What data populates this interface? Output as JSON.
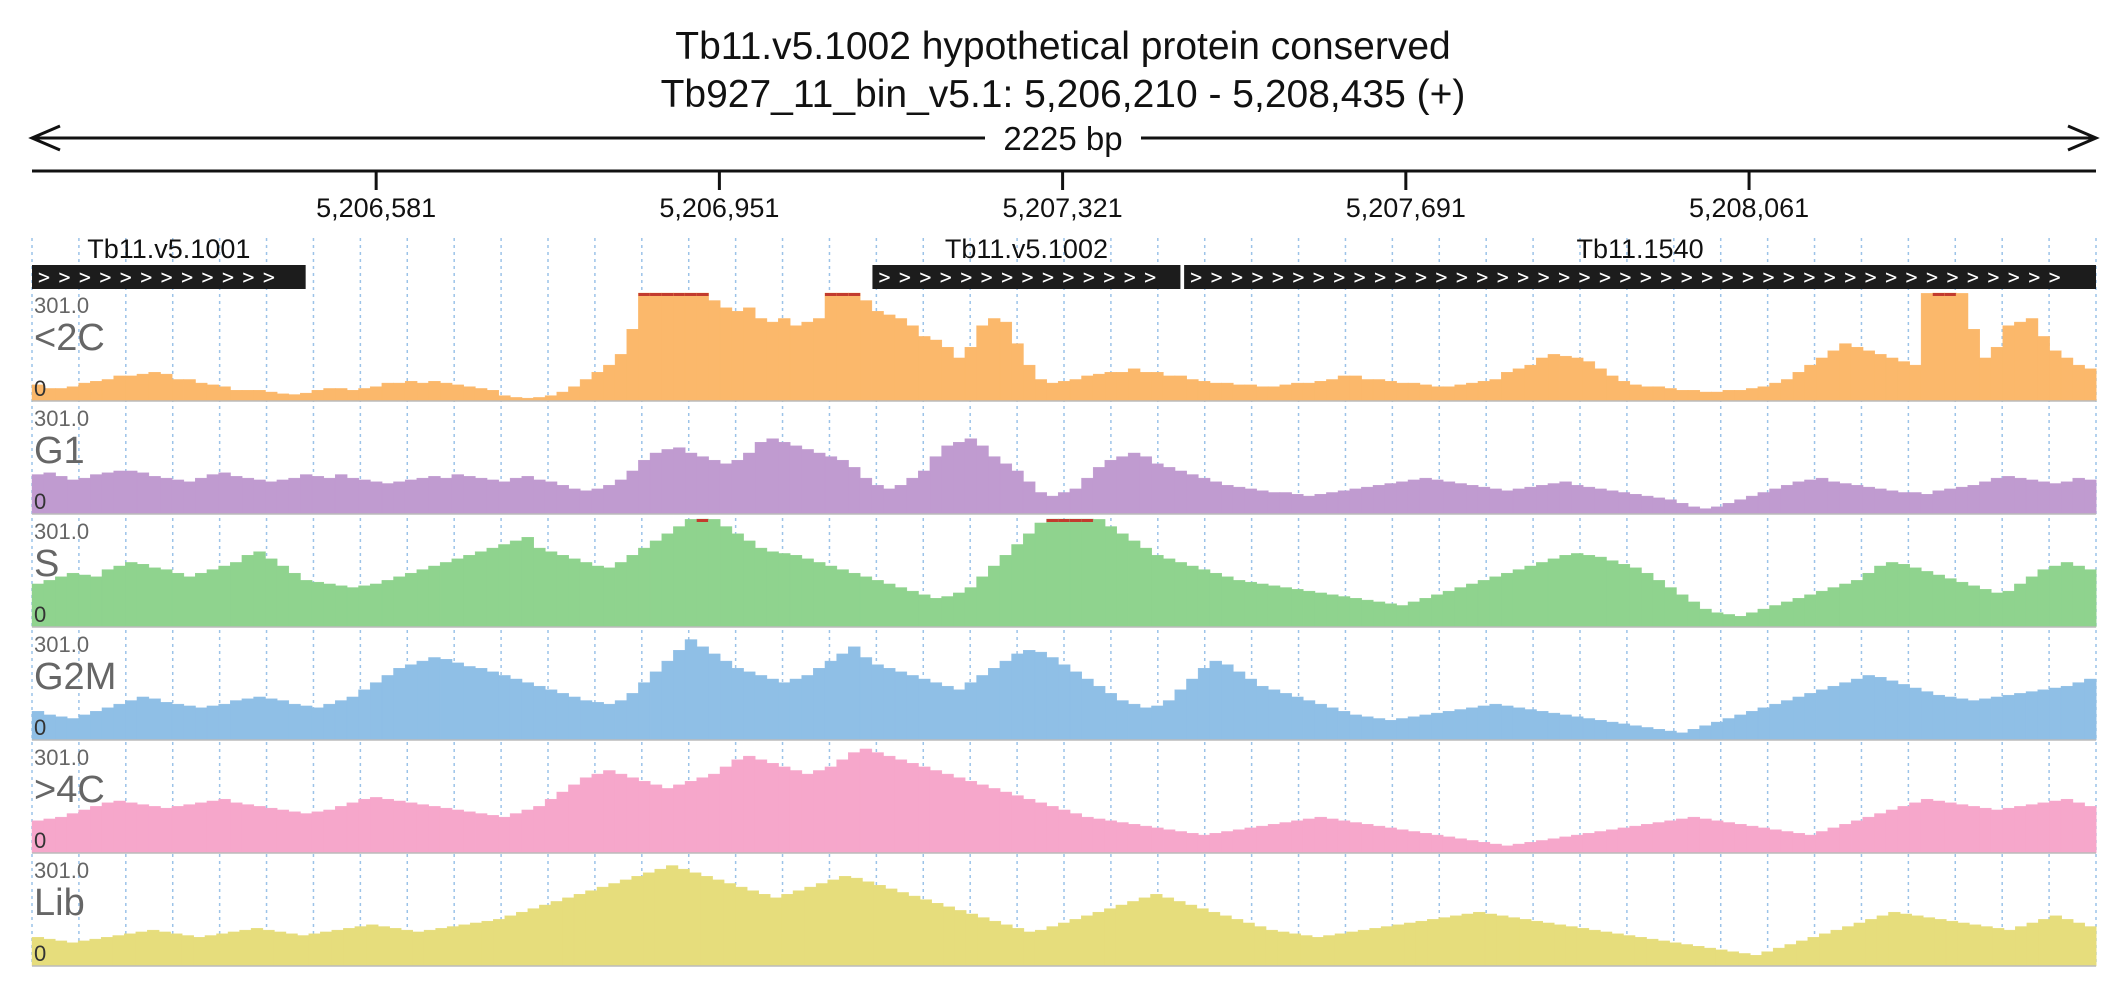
{
  "header": {
    "title_line1": "Tb11.v5.1002  hypothetical protein  conserved",
    "title_line2": "Tb927_11_bin_v5.1: 5,206,210 - 5,208,435 (+)"
  },
  "colors": {
    "grid": "#9cc3e8",
    "gene_fill": "#1c1c1c",
    "clip_marker": "#c23b2e",
    "label_gray": "#666666"
  },
  "chart_data": {
    "type": "bar",
    "region": {
      "chrom": "Tb927_11_bin_v5.1",
      "start": 5206210,
      "end": 5208435,
      "strand": "+"
    },
    "span_label": "2225 bp",
    "axis": {
      "ticks": [
        5206581,
        5206951,
        5207321,
        5207691,
        5208061
      ],
      "tick_labels": [
        "5,206,581",
        "5,206,951",
        "5,207,321",
        "5,207,691",
        "5,208,061"
      ]
    },
    "genes": [
      {
        "name": "Tb11.v5.1001",
        "start": 5206210,
        "end": 5206505,
        "strand": "+"
      },
      {
        "name": "Tb11.v5.1002",
        "start": 5207116,
        "end": 5207448,
        "strand": "+"
      },
      {
        "name": "Tb11.1540",
        "start": 5207452,
        "end": 5208435,
        "strand": "+"
      }
    ],
    "tracks": [
      {
        "name": "<2C",
        "color": "#fbb86b",
        "ymax": 301.0,
        "ymin_label": "0",
        "ymax_label": "301.0",
        "values": [
          45,
          35,
          35,
          40,
          50,
          55,
          60,
          70,
          70,
          75,
          80,
          75,
          60,
          60,
          50,
          45,
          40,
          30,
          30,
          30,
          25,
          20,
          18,
          22,
          30,
          35,
          35,
          30,
          35,
          40,
          50,
          50,
          55,
          50,
          55,
          50,
          45,
          40,
          35,
          30,
          15,
          10,
          8,
          10,
          15,
          25,
          40,
          60,
          80,
          100,
          130,
          200,
          330,
          330,
          330,
          330,
          330,
          330,
          280,
          260,
          250,
          260,
          230,
          220,
          230,
          210,
          220,
          230,
          330,
          330,
          330,
          280,
          250,
          240,
          230,
          210,
          180,
          170,
          150,
          120,
          150,
          210,
          230,
          220,
          160,
          100,
          60,
          50,
          55,
          60,
          70,
          75,
          80,
          80,
          90,
          80,
          80,
          70,
          70,
          60,
          55,
          50,
          50,
          45,
          45,
          40,
          40,
          45,
          50,
          50,
          55,
          60,
          70,
          70,
          60,
          60,
          55,
          50,
          50,
          45,
          40,
          40,
          45,
          50,
          55,
          60,
          80,
          90,
          100,
          120,
          130,
          125,
          120,
          110,
          90,
          70,
          55,
          45,
          40,
          40,
          35,
          30,
          30,
          25,
          25,
          30,
          30,
          35,
          40,
          50,
          60,
          80,
          100,
          120,
          140,
          160,
          150,
          140,
          130,
          120,
          110,
          100,
          300,
          330,
          330,
          300,
          200,
          120,
          150,
          210,
          220,
          230,
          180,
          140,
          120,
          100,
          90
        ]
      },
      {
        "name": "G1",
        "color": "#c09bd0",
        "ymax": 301.0,
        "ymin_label": "0",
        "ymax_label": "301.0",
        "values": [
          110,
          115,
          105,
          95,
          100,
          110,
          115,
          120,
          120,
          115,
          105,
          100,
          95,
          90,
          100,
          110,
          115,
          105,
          100,
          95,
          90,
          95,
          100,
          110,
          105,
          100,
          110,
          100,
          95,
          90,
          85,
          90,
          95,
          100,
          105,
          100,
          110,
          105,
          100,
          95,
          90,
          100,
          105,
          95,
          90,
          80,
          70,
          65,
          70,
          80,
          95,
          120,
          150,
          170,
          180,
          185,
          170,
          160,
          150,
          140,
          150,
          170,
          200,
          210,
          200,
          190,
          180,
          170,
          160,
          150,
          130,
          100,
          80,
          70,
          80,
          100,
          120,
          160,
          190,
          200,
          210,
          190,
          160,
          140,
          120,
          90,
          60,
          50,
          60,
          70,
          100,
          130,
          150,
          160,
          170,
          160,
          140,
          130,
          120,
          110,
          100,
          90,
          80,
          75,
          70,
          65,
          60,
          60,
          55,
          50,
          55,
          60,
          65,
          70,
          75,
          80,
          85,
          90,
          95,
          100,
          95,
          90,
          85,
          80,
          75,
          70,
          65,
          70,
          75,
          80,
          85,
          90,
          80,
          75,
          70,
          65,
          60,
          55,
          50,
          45,
          40,
          30,
          20,
          15,
          20,
          30,
          40,
          50,
          60,
          70,
          80,
          90,
          95,
          100,
          90,
          85,
          80,
          75,
          70,
          65,
          60,
          60,
          55,
          65,
          70,
          75,
          80,
          90,
          100,
          105,
          100,
          95,
          90,
          85,
          90,
          100,
          95
        ]
      },
      {
        "name": "S",
        "color": "#8fd38e",
        "ymax": 301.0,
        "ymin_label": "0",
        "ymax_label": "301.0",
        "values": [
          120,
          130,
          140,
          150,
          145,
          140,
          160,
          170,
          180,
          175,
          165,
          160,
          150,
          140,
          150,
          160,
          170,
          180,
          200,
          210,
          190,
          170,
          150,
          130,
          125,
          120,
          115,
          110,
          115,
          120,
          130,
          140,
          150,
          160,
          170,
          180,
          190,
          200,
          210,
          220,
          230,
          240,
          250,
          220,
          210,
          200,
          190,
          180,
          170,
          165,
          180,
          200,
          220,
          240,
          260,
          280,
          300,
          320,
          300,
          280,
          260,
          240,
          220,
          210,
          205,
          200,
          190,
          180,
          170,
          160,
          150,
          140,
          130,
          120,
          110,
          100,
          90,
          80,
          85,
          95,
          110,
          140,
          170,
          200,
          230,
          260,
          290,
          320,
          330,
          330,
          320,
          300,
          280,
          260,
          240,
          220,
          200,
          190,
          180,
          170,
          160,
          150,
          140,
          130,
          125,
          120,
          115,
          110,
          105,
          100,
          95,
          90,
          85,
          80,
          75,
          70,
          65,
          60,
          70,
          80,
          90,
          100,
          110,
          120,
          130,
          140,
          150,
          160,
          170,
          180,
          190,
          200,
          205,
          200,
          195,
          185,
          175,
          165,
          150,
          130,
          110,
          90,
          70,
          50,
          40,
          35,
          30,
          40,
          50,
          60,
          70,
          80,
          90,
          100,
          110,
          120,
          130,
          150,
          170,
          180,
          175,
          165,
          155,
          145,
          135,
          125,
          115,
          105,
          95,
          100,
          120,
          140,
          160,
          170,
          180,
          170,
          160
        ]
      },
      {
        "name": "G2M",
        "color": "#8fbfe6",
        "ymax": 301.0,
        "ymin_label": "0",
        "ymax_label": "301.0",
        "values": [
          80,
          70,
          65,
          60,
          70,
          80,
          90,
          100,
          110,
          120,
          115,
          105,
          100,
          95,
          90,
          95,
          100,
          110,
          115,
          120,
          115,
          110,
          100,
          95,
          90,
          100,
          110,
          120,
          140,
          160,
          180,
          200,
          210,
          220,
          230,
          225,
          215,
          205,
          200,
          190,
          180,
          170,
          160,
          150,
          140,
          130,
          120,
          110,
          105,
          100,
          110,
          130,
          160,
          190,
          220,
          250,
          280,
          260,
          240,
          220,
          200,
          190,
          180,
          170,
          160,
          170,
          180,
          200,
          220,
          240,
          260,
          230,
          210,
          200,
          190,
          180,
          170,
          160,
          150,
          140,
          160,
          180,
          200,
          220,
          240,
          250,
          245,
          230,
          210,
          190,
          170,
          150,
          130,
          110,
          100,
          90,
          95,
          110,
          140,
          170,
          200,
          220,
          210,
          190,
          170,
          150,
          140,
          130,
          120,
          110,
          100,
          90,
          80,
          70,
          65,
          60,
          55,
          60,
          65,
          70,
          75,
          80,
          85,
          90,
          95,
          100,
          95,
          90,
          85,
          80,
          75,
          70,
          65,
          60,
          55,
          50,
          45,
          40,
          35,
          30,
          25,
          20,
          30,
          40,
          50,
          60,
          70,
          80,
          90,
          100,
          110,
          120,
          130,
          140,
          150,
          160,
          170,
          180,
          175,
          165,
          155,
          145,
          135,
          125,
          120,
          115,
          110,
          115,
          120,
          125,
          130,
          135,
          140,
          145,
          150,
          160,
          170
        ]
      },
      {
        "name": ">4C",
        "color": "#f6a7cb",
        "ymax": 301.0,
        "ymin_label": "0",
        "ymax_label": "301.0",
        "values": [
          90,
          95,
          100,
          110,
          120,
          130,
          140,
          145,
          140,
          135,
          130,
          125,
          130,
          135,
          140,
          145,
          150,
          140,
          135,
          130,
          125,
          120,
          115,
          110,
          115,
          120,
          130,
          140,
          150,
          155,
          150,
          145,
          140,
          135,
          130,
          125,
          120,
          115,
          110,
          105,
          100,
          110,
          120,
          130,
          150,
          170,
          190,
          210,
          220,
          230,
          220,
          210,
          200,
          190,
          180,
          190,
          200,
          210,
          220,
          240,
          260,
          270,
          260,
          250,
          240,
          230,
          220,
          230,
          240,
          260,
          280,
          290,
          280,
          270,
          260,
          250,
          240,
          230,
          220,
          210,
          200,
          190,
          180,
          170,
          160,
          150,
          140,
          130,
          120,
          110,
          100,
          95,
          90,
          85,
          80,
          75,
          70,
          65,
          60,
          55,
          50,
          55,
          60,
          65,
          70,
          75,
          80,
          85,
          90,
          95,
          100,
          95,
          90,
          85,
          80,
          75,
          70,
          65,
          60,
          55,
          50,
          45,
          40,
          35,
          30,
          25,
          20,
          25,
          30,
          35,
          40,
          45,
          50,
          55,
          60,
          65,
          70,
          75,
          80,
          85,
          90,
          95,
          100,
          95,
          90,
          85,
          80,
          75,
          70,
          65,
          60,
          55,
          50,
          60,
          70,
          80,
          90,
          100,
          110,
          120,
          130,
          140,
          150,
          145,
          140,
          135,
          130,
          125,
          120,
          125,
          130,
          135,
          140,
          145,
          150,
          140,
          130
        ]
      },
      {
        "name": "Lib",
        "color": "#e6dd7c",
        "ymax": 301.0,
        "ymin_label": "0",
        "ymax_label": "301.0",
        "values": [
          80,
          75,
          70,
          65,
          70,
          75,
          80,
          85,
          90,
          95,
          100,
          95,
          90,
          85,
          80,
          85,
          90,
          95,
          100,
          105,
          100,
          95,
          90,
          85,
          90,
          95,
          100,
          105,
          110,
          115,
          110,
          105,
          100,
          95,
          100,
          105,
          110,
          115,
          120,
          125,
          130,
          140,
          150,
          160,
          170,
          180,
          190,
          200,
          210,
          220,
          230,
          240,
          250,
          260,
          270,
          280,
          270,
          260,
          250,
          240,
          230,
          220,
          210,
          200,
          190,
          200,
          210,
          220,
          230,
          240,
          250,
          245,
          235,
          225,
          215,
          205,
          195,
          185,
          175,
          165,
          155,
          145,
          135,
          125,
          115,
          105,
          95,
          100,
          110,
          120,
          130,
          140,
          150,
          160,
          170,
          180,
          190,
          200,
          190,
          180,
          170,
          160,
          150,
          140,
          130,
          120,
          110,
          100,
          95,
          90,
          85,
          80,
          85,
          90,
          95,
          100,
          105,
          110,
          115,
          120,
          125,
          130,
          135,
          140,
          145,
          150,
          145,
          140,
          135,
          130,
          125,
          120,
          115,
          110,
          105,
          100,
          95,
          90,
          85,
          80,
          75,
          70,
          65,
          60,
          55,
          50,
          45,
          40,
          35,
          30,
          40,
          50,
          60,
          70,
          80,
          90,
          100,
          110,
          120,
          130,
          140,
          150,
          145,
          140,
          135,
          130,
          125,
          120,
          115,
          110,
          105,
          100,
          110,
          120,
          130,
          140,
          130,
          120,
          110
        ]
      }
    ]
  }
}
